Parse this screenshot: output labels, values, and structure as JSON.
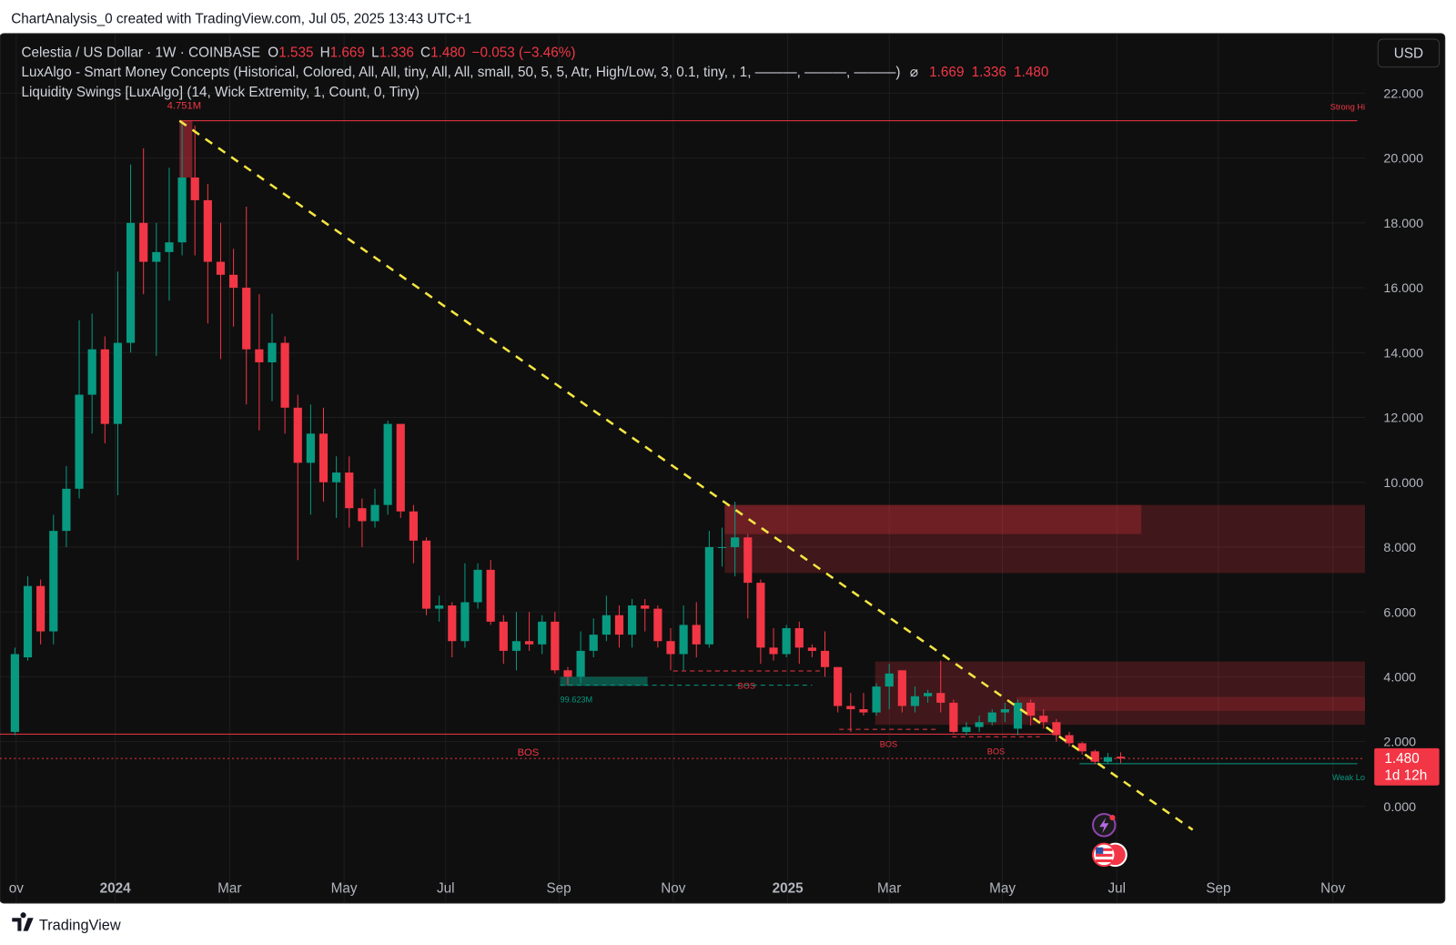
{
  "header": {
    "text": "ChartAnalysis_0 created with TradingView.com, Jul 05, 2025 13:43 UTC+1"
  },
  "footer": {
    "brand": "TradingView"
  },
  "currency": "USD",
  "legend": {
    "symbol": "Celestia / US Dollar · 1W · COINBASE",
    "ohlc_labels": [
      "O",
      "H",
      "L",
      "C"
    ],
    "ohlc_values": [
      "1.535",
      "1.669",
      "1.336",
      "1.480"
    ],
    "change": "−0.053 (−3.46%)",
    "indicators": [
      {
        "text": "LuxAlgo - Smart Money Concepts (Historical, Colored, All, All, tiny, All, All, small, 50, 5, 5, Atr, High/Low, 3, 0.1, tiny, , 1, ———, ———, ———)",
        "symbol": "⌀",
        "values": [
          "1.669",
          "1.336",
          "1.480"
        ]
      },
      {
        "text": "Liquidity Swings [LuxAlgo] (14, Wick Extremity, 1, Count, 0, Tiny)"
      }
    ]
  },
  "price_tag": {
    "value": "1.480",
    "countdown": "1d 12h"
  },
  "chart_data": {
    "type": "candlestick",
    "up_color": "#089981",
    "down_color": "#f23645",
    "open": [
      2.3,
      4.6,
      6.8,
      5.4,
      8.5,
      9.8,
      12.7,
      14.1,
      11.8,
      14.3,
      18.0,
      16.8,
      17.1,
      17.4,
      19.4,
      18.7,
      16.8,
      16.4,
      16.0,
      14.1,
      13.7,
      14.3,
      12.3,
      10.6,
      11.5,
      10.0,
      10.3,
      9.2,
      8.8,
      9.3,
      11.8,
      9.1,
      8.2,
      6.1,
      6.2,
      5.1,
      6.3,
      7.3,
      5.7,
      4.8,
      5.1,
      5.0,
      5.7,
      4.2,
      4.0,
      4.8,
      5.3,
      5.9,
      5.3,
      6.2,
      6.1,
      5.1,
      4.7,
      5.6,
      5.0,
      8.0,
      8.0,
      8.3,
      6.9,
      4.9,
      4.7,
      5.5,
      4.9,
      4.8,
      4.3,
      3.1,
      3.0,
      2.9,
      3.7,
      4.2,
      3.1,
      3.4,
      3.5,
      3.2,
      2.3,
      2.45,
      2.6,
      2.9,
      2.4,
      3.2,
      2.8,
      2.6,
      2.2,
      1.95,
      1.7,
      1.38,
      1.535
    ],
    "high": [
      4.9,
      7.1,
      7.0,
      9.0,
      10.5,
      15.0,
      15.2,
      14.5,
      16.5,
      19.8,
      20.3,
      18.0,
      19.7,
      21.15,
      21.0,
      19.2,
      18.0,
      17.2,
      18.5,
      15.8,
      15.2,
      14.5,
      12.7,
      12.4,
      12.3,
      10.8,
      10.8,
      9.5,
      9.8,
      11.9,
      11.8,
      9.3,
      8.3,
      6.5,
      6.3,
      7.5,
      7.5,
      7.6,
      5.9,
      6.0,
      6.0,
      5.9,
      6.0,
      4.3,
      5.4,
      5.8,
      6.5,
      6.2,
      6.4,
      6.4,
      6.2,
      5.5,
      6.2,
      6.3,
      8.5,
      8.6,
      9.4,
      8.4,
      7.0,
      5.5,
      5.6,
      5.7,
      5.0,
      5.4,
      4.3,
      3.5,
      3.5,
      3.8,
      4.4,
      4.2,
      3.7,
      3.6,
      4.5,
      3.3,
      2.6,
      2.8,
      3.0,
      3.2,
      3.3,
      3.3,
      3.0,
      2.7,
      2.3,
      2.0,
      1.75,
      1.65,
      1.669
    ],
    "low": [
      2.2,
      4.5,
      5.0,
      5.0,
      8.0,
      9.5,
      11.5,
      11.2,
      9.6,
      14.0,
      15.8,
      13.9,
      15.6,
      17.0,
      17.0,
      14.9,
      13.8,
      14.8,
      12.4,
      11.6,
      12.5,
      11.5,
      7.6,
      9.0,
      9.4,
      8.9,
      8.6,
      8.0,
      8.6,
      9.0,
      8.9,
      7.5,
      5.9,
      5.7,
      4.6,
      4.9,
      6.1,
      5.6,
      4.4,
      4.2,
      4.8,
      4.7,
      4.1,
      3.74,
      3.8,
      4.6,
      5.1,
      4.9,
      4.9,
      5.4,
      4.9,
      4.2,
      4.2,
      4.6,
      4.9,
      7.4,
      7.1,
      5.8,
      4.4,
      4.5,
      4.6,
      4.4,
      4.6,
      4.0,
      2.9,
      2.3,
      2.8,
      2.8,
      3.0,
      2.9,
      2.9,
      3.2,
      2.9,
      2.25,
      2.2,
      2.3,
      2.5,
      2.6,
      2.2,
      2.5,
      2.4,
      2.0,
      1.85,
      1.6,
      1.3,
      1.33,
      1.336
    ],
    "close": [
      4.7,
      6.8,
      5.4,
      8.5,
      9.8,
      12.7,
      14.1,
      11.8,
      14.3,
      18.0,
      16.8,
      17.1,
      17.4,
      19.4,
      18.7,
      16.8,
      16.4,
      16.0,
      14.1,
      13.7,
      14.3,
      12.3,
      10.6,
      11.5,
      10.0,
      10.3,
      9.2,
      8.8,
      9.3,
      11.8,
      9.1,
      8.2,
      6.1,
      6.2,
      5.1,
      6.3,
      7.3,
      5.7,
      4.8,
      5.1,
      5.0,
      5.7,
      4.2,
      4.0,
      4.8,
      5.3,
      5.9,
      5.3,
      6.2,
      6.1,
      5.1,
      4.7,
      5.6,
      5.0,
      8.0,
      8.0,
      8.3,
      6.9,
      4.9,
      4.7,
      5.5,
      4.9,
      4.8,
      4.3,
      3.1,
      3.0,
      2.9,
      3.7,
      4.1,
      3.1,
      3.4,
      3.5,
      3.2,
      2.3,
      2.45,
      2.6,
      2.9,
      3.0,
      3.2,
      2.8,
      2.6,
      2.2,
      1.95,
      1.7,
      1.38,
      1.52,
      1.48
    ],
    "xlim": [
      -1.16,
      105
    ],
    "xticks": [
      {
        "value": 0.1,
        "label": "ov"
      },
      {
        "value": 7.8,
        "label": "2024"
      },
      {
        "value": 16.7,
        "label": "Mar"
      },
      {
        "value": 25.6,
        "label": "May"
      },
      {
        "value": 33.5,
        "label": "Jul"
      },
      {
        "value": 42.3,
        "label": "Sep"
      },
      {
        "value": 51.2,
        "label": "Nov"
      },
      {
        "value": 60.1,
        "label": "2025"
      },
      {
        "value": 68.0,
        "label": "Mar"
      },
      {
        "value": 76.8,
        "label": "May"
      },
      {
        "value": 85.7,
        "label": "Jul"
      },
      {
        "value": 93.6,
        "label": "Sep"
      },
      {
        "value": 102.5,
        "label": "Nov"
      }
    ],
    "ylim": [
      -2.98,
      23.84
    ],
    "yticks": [
      {
        "value": 0,
        "label": "0.000"
      },
      {
        "value": 2,
        "label": "2.000"
      },
      {
        "value": 4,
        "label": "4.000"
      },
      {
        "value": 6,
        "label": "6.000"
      },
      {
        "value": 8,
        "label": "8.000"
      },
      {
        "value": 10,
        "label": "10.000"
      },
      {
        "value": 12,
        "label": "12.000"
      },
      {
        "value": 14,
        "label": "14.000"
      },
      {
        "value": 16,
        "label": "16.000"
      },
      {
        "value": 18,
        "label": "18.000"
      },
      {
        "value": 20,
        "label": "20.000"
      },
      {
        "value": 22,
        "label": "22.000"
      }
    ],
    "grid": true,
    "zones": [
      {
        "x": [
          55.2,
          105
        ],
        "y": [
          7.2,
          9.3
        ],
        "color": "#f23645",
        "opacity": 0.22
      },
      {
        "x": [
          55.2,
          87.6
        ],
        "y": [
          8.4,
          9.3
        ],
        "color": "#f23645",
        "opacity": 0.25
      },
      {
        "x": [
          66.9,
          105
        ],
        "y": [
          2.52,
          4.47
        ],
        "color": "#f23645",
        "opacity": 0.22
      },
      {
        "x": [
          77.9,
          105
        ],
        "y": [
          2.95,
          3.38
        ],
        "color": "#f23645",
        "opacity": 0.2
      },
      {
        "x": [
          12.8,
          13.8
        ],
        "y": [
          19.4,
          21.15
        ],
        "color": "#f23645",
        "opacity": 0.45
      },
      {
        "x": [
          42.4,
          49.2
        ],
        "y": [
          3.72,
          4.0
        ],
        "color": "#089981",
        "opacity": 0.5,
        "label": "99.623M"
      }
    ],
    "levels": [
      {
        "value": 21.15,
        "x": [
          12.8,
          104.4
        ],
        "color": "#f23645",
        "style": "solid",
        "label": "4.751M",
        "end_label": "Strong Hi"
      },
      {
        "value": 2.23,
        "x": [
          -1.16,
          81
        ],
        "color": "#f23645",
        "style": "solid",
        "label": "BOS"
      },
      {
        "value": 4.18,
        "x": [
          51.2,
          62.6
        ],
        "color": "#f23645",
        "style": "dashed",
        "label": "BOS"
      },
      {
        "value": 3.74,
        "x": [
          42.4,
          62
        ],
        "color": "#089981",
        "style": "dashed"
      },
      {
        "value": 2.38,
        "x": [
          64.1,
          71.8
        ],
        "color": "#f23645",
        "style": "dashed",
        "label": "BOS"
      },
      {
        "value": 2.15,
        "x": [
          72.9,
          79.7
        ],
        "color": "#f23645",
        "style": "dashed",
        "label": "BOS"
      },
      {
        "value": 1.48,
        "x": [
          -1.16,
          105
        ],
        "color": "#f23645",
        "style": "dotted"
      },
      {
        "value": 1.32,
        "x": [
          82.8,
          104.4
        ],
        "color": "#089981",
        "style": "solid",
        "end_label": "Weak Lo"
      }
    ],
    "trendline": {
      "x": [
        12.8,
        91.6
      ],
      "values": [
        21.15,
        -0.72
      ],
      "color": "#f5e642"
    }
  }
}
